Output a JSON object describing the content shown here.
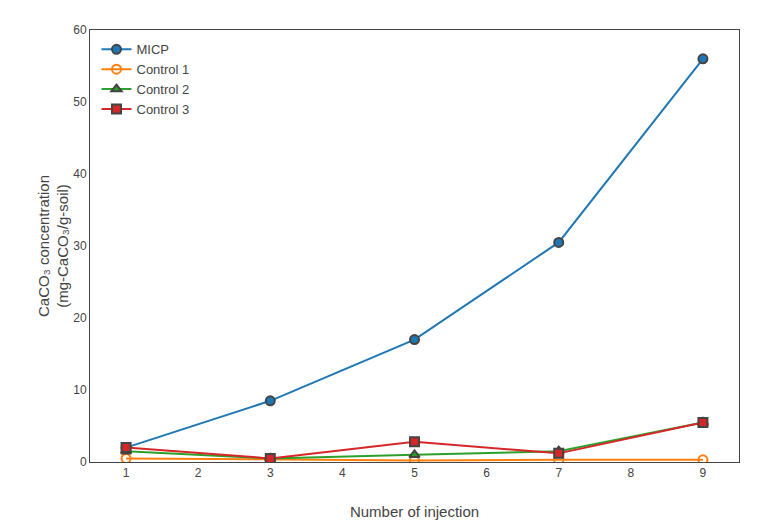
{
  "chart_data": {
    "type": "line",
    "xlabel": "Number of injection",
    "ylabel": "CaCO₃ concentration\n(mg-CaCO₃/g-soil)",
    "x": [
      1,
      3,
      5,
      7,
      9
    ],
    "series": [
      {
        "name": "MICP",
        "marker": "circle",
        "values": [
          2.0,
          8.5,
          17.0,
          30.5,
          56.0
        ]
      },
      {
        "name": "Control 1",
        "marker": "open_circle",
        "values": [
          0.5,
          0.3,
          0.2,
          0.3,
          0.3
        ]
      },
      {
        "name": "Control 2",
        "marker": "triangle",
        "values": [
          1.5,
          0.5,
          1.0,
          1.5,
          5.5
        ]
      },
      {
        "name": "Control 3",
        "marker": "square",
        "values": [
          2.0,
          0.5,
          2.8,
          1.2,
          5.5
        ]
      }
    ],
    "xlim": [
      0.5,
      9.5
    ],
    "ylim": [
      0,
      60
    ],
    "xticks": [
      1,
      2,
      3,
      4,
      5,
      6,
      7,
      8,
      9
    ],
    "yticks": [
      0,
      10,
      20,
      30,
      40,
      50,
      60
    ],
    "legend": "upper left",
    "grid": false
  }
}
